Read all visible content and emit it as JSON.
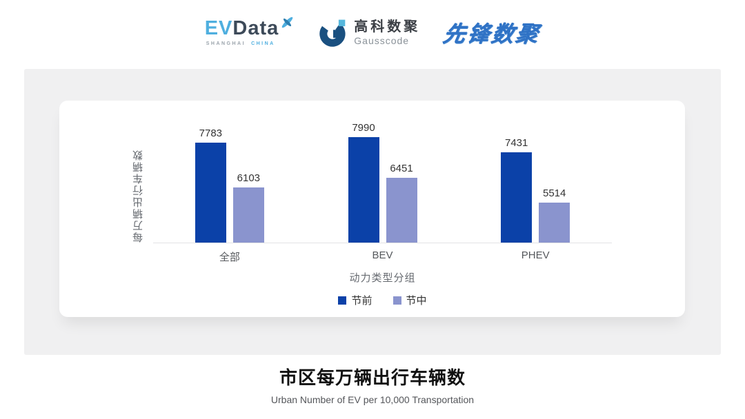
{
  "header": {
    "evdata": {
      "ev": "EV",
      "data": "Data",
      "sub_left": "SHANGHAI",
      "sub_right": "CHINA",
      "ev_color": "#4FAFDF",
      "data_color": "#3D4A59",
      "x_icon": "evdata-x-icon"
    },
    "gausscode": {
      "cn": "高科数聚",
      "en": "Gausscode",
      "mark_icon": "gausscode-g-logo-icon",
      "mark_color": "#1A5080",
      "mark_accent": "#56B7DC"
    },
    "xianfeng": {
      "text": "先锋数聚",
      "color": "#2F72C5"
    }
  },
  "chart_data": {
    "type": "bar",
    "title": "市区每万辆出行车辆数",
    "subtitle": "Urban Number of EV per 10,000 Transportation",
    "xlabel": "动力类型分组",
    "ylabel": "每万辆出行车辆数",
    "categories": [
      "全部",
      "BEV",
      "PHEV"
    ],
    "series": [
      {
        "name": "节前",
        "color": "#0B41A8",
        "values": [
          7783,
          7990,
          7431
        ]
      },
      {
        "name": "节中",
        "color": "#8A94CE",
        "values": [
          6103,
          6451,
          5514
        ]
      }
    ],
    "ylim": [
      4000,
      8000
    ],
    "grid": false,
    "axis_line_color": "#E3E3E4",
    "legend_position": "bottom",
    "value_labels_shown": true
  },
  "panel": {
    "background": "#F0F0F1",
    "card_background": "#FFFFFF"
  }
}
